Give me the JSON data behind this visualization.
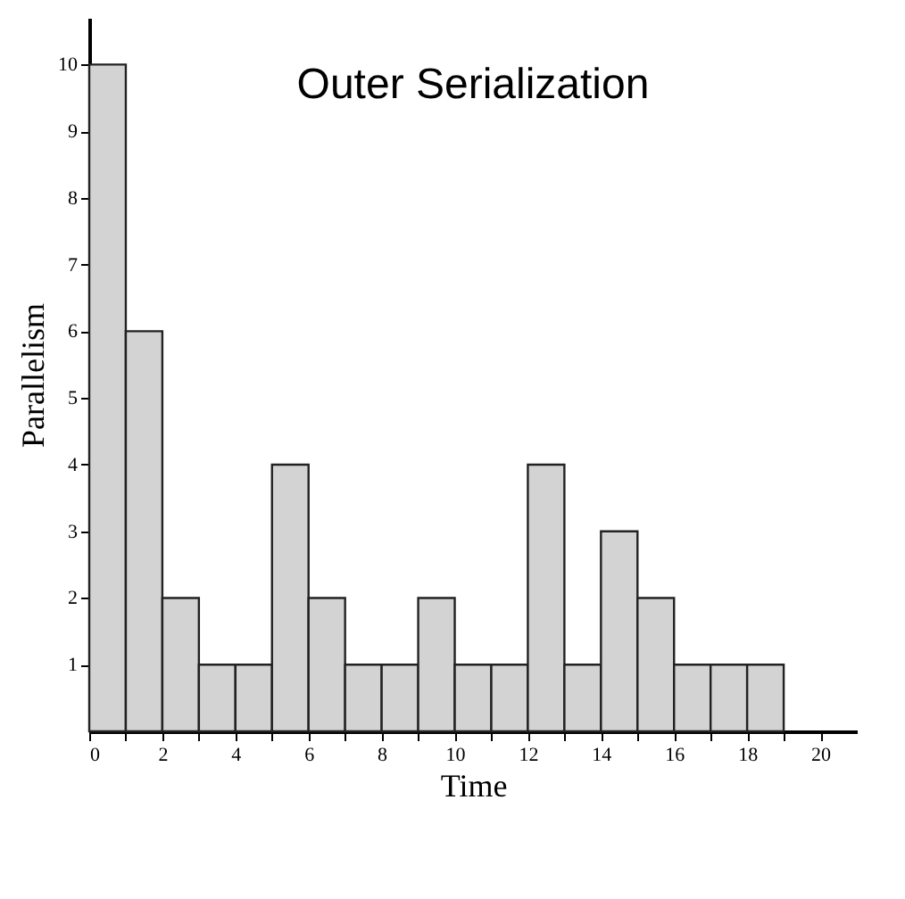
{
  "chart_data": {
    "type": "histogram",
    "title": "Outer Serialization",
    "xlabel": "Time",
    "ylabel": "Parallelism",
    "bins": [
      0,
      1,
      2,
      3,
      4,
      5,
      6,
      7,
      8,
      9,
      10,
      11,
      12,
      13,
      14,
      15,
      16,
      17,
      18,
      19
    ],
    "values": [
      10,
      6,
      2,
      1,
      1,
      4,
      2,
      1,
      1,
      2,
      1,
      1,
      4,
      1,
      3,
      2,
      1,
      1,
      1
    ],
    "color": "#d3d3d3",
    "xlim": [
      0,
      21
    ],
    "ylim": [
      0,
      10.7
    ],
    "xticks": [
      0,
      {
        "value": 1,
        "label": null
      },
      2,
      {
        "value": 3,
        "label": null
      },
      4,
      {
        "value": 5,
        "label": null
      },
      6,
      {
        "value": 7,
        "label": null
      },
      8,
      {
        "value": 9,
        "label": null
      },
      10,
      {
        "value": 11,
        "label": null
      },
      12,
      {
        "value": 13,
        "label": null
      },
      14,
      {
        "value": 15,
        "label": null
      },
      16,
      {
        "value": 17,
        "label": null
      },
      18,
      {
        "value": 19,
        "label": null
      },
      20
    ],
    "yticks": [
      1,
      2,
      3,
      4,
      5,
      6,
      7,
      8,
      9,
      10
    ],
    "grid": false
  }
}
